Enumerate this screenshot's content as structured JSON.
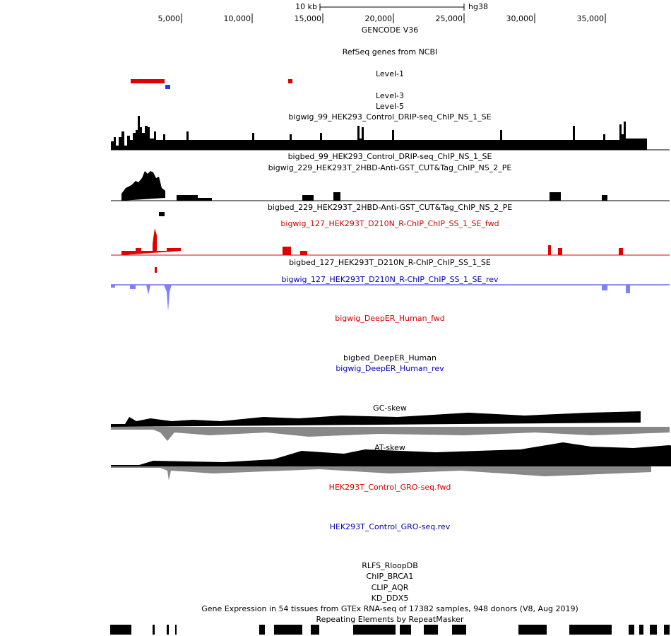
{
  "ruler": {
    "scale_label": "10 kb",
    "assembly": "hg38",
    "positions": [
      "5,000",
      "10,000",
      "15,000",
      "20,000",
      "25,000",
      "30,000",
      "35,000"
    ]
  },
  "tracks": [
    "GENCODE V36",
    "RefSeq genes from NCBI",
    "Level-1",
    "Level-3",
    "Level-5",
    "bigwig_99_HEK293_Control_DRIP-seq_ChIP_NS_1_SE",
    "bigbed_99_HEK293_Control_DRIP-seq_ChIP_NS_1_SE",
    "bigwig_229_HEK293T_2HBD-Anti-GST_CUT&Tag_ChIP_NS_2_PE",
    "bigbed_229_HEK293T_2HBD-Anti-GST_CUT&Tag_ChIP_NS_2_PE",
    "bigwig_127_HEK293T_D210N_R-ChIP_ChIP_SS_1_SE_fwd",
    "bigbed_127_HEK293T_D210N_R-ChIP_ChIP_SS_1_SE",
    "bigwig_127_HEK293T_D210N_R-ChIP_ChIP_SS_1_SE_rev",
    "bigwig_DeepER_Human_fwd",
    "bigbed_DeepER_Human",
    "bigwig_DeepER_Human_rev",
    "GC-skew",
    "AT-skew",
    "HEK293T_Control_GRO-seq.fwd",
    "HEK293T_Control_GRO-seq.rev",
    "RLFS_RloopDB",
    "ChIP_BRCA1",
    "CLIP_AQR",
    "KD_DDX5",
    "Gene Expression in 54 tissues from GTEx RNA-seq of 17382 samples, 948 donors (V8, Aug 2019)",
    "Repeating Elements by RepeatMasker"
  ]
}
